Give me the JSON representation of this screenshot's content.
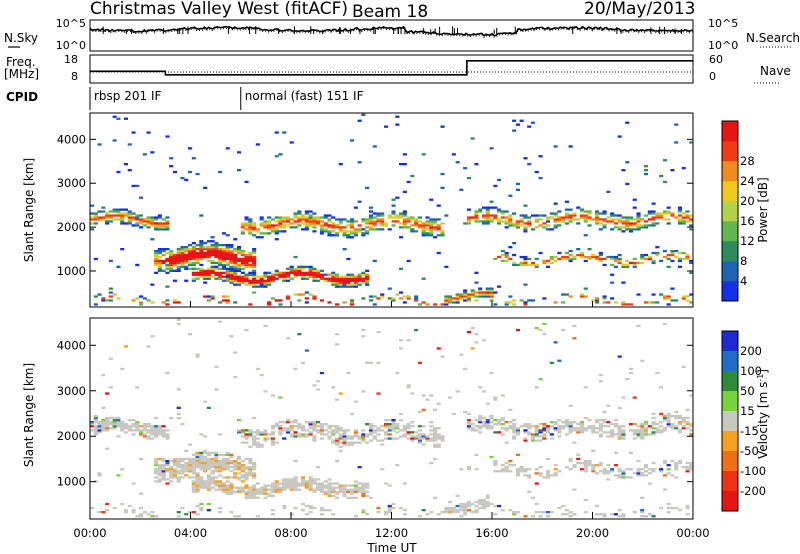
{
  "header": {
    "title": "Christmas Valley West (fitACF)",
    "beam": "Beam 18",
    "date": "20/May/2013"
  },
  "left_labels": {
    "nsky": "N.Sky",
    "freq_line1": "Freq.",
    "freq_line2": "[MHz]",
    "cpid": "CPID"
  },
  "right_labels": {
    "nsearch": "N.Search",
    "nave": "Nave"
  },
  "strip_ticks": {
    "noise_left_top": "10^5",
    "noise_left_bottom": "10^0",
    "noise_right_top": "10^5",
    "noise_right_bottom": "10^0",
    "freq_left_top": "18",
    "freq_left_bottom": "8",
    "nave_right_top": "60",
    "nave_right_bottom": "0"
  },
  "cpid_modes": [
    {
      "label": "rbsp 201 IF",
      "start_hour": 0,
      "end_hour": 6
    },
    {
      "label": "normal (fast) 151 IF",
      "start_hour": 6,
      "end_hour": 24
    }
  ],
  "chart_data": [
    {
      "type": "heatmap",
      "name": "power",
      "ylabel": "Slant Range [km]",
      "yticks": [
        "1000",
        "2000",
        "3000",
        "4000"
      ],
      "ylim": [
        180,
        4600
      ],
      "colorbar_label": "Power [dB]",
      "colorbar_ticks": [
        "4",
        "8",
        "12",
        "16",
        "20",
        "24",
        "28"
      ],
      "colorbar_colors": [
        "#1430e6",
        "#1e64b4",
        "#2d8c5a",
        "#64b450",
        "#b4d246",
        "#f0c81e",
        "#f08c1e",
        "#f03c14",
        "#e61414"
      ]
    },
    {
      "type": "heatmap",
      "name": "velocity",
      "ylabel": "Slant Range [km]",
      "yticks": [
        "1000",
        "2000",
        "3000",
        "4000"
      ],
      "ylim": [
        180,
        4600
      ],
      "colorbar_label": "Velocity [m s^-1]",
      "colorbar_ticks": [
        "200",
        "100",
        "50",
        "15",
        "-15",
        "-50",
        "-100",
        "-200"
      ],
      "colorbar_colors": [
        "#1e2ad2",
        "#1e6ec8",
        "#2e8b3c",
        "#78d23c",
        "#c8c8c0",
        "#f5a01e",
        "#f06e14",
        "#ee3214",
        "#e61414"
      ]
    }
  ],
  "x_axis": {
    "label": "Time UT",
    "ticks": [
      "00:00",
      "04:00",
      "08:00",
      "12:00",
      "16:00",
      "20:00",
      "00:00"
    ]
  }
}
